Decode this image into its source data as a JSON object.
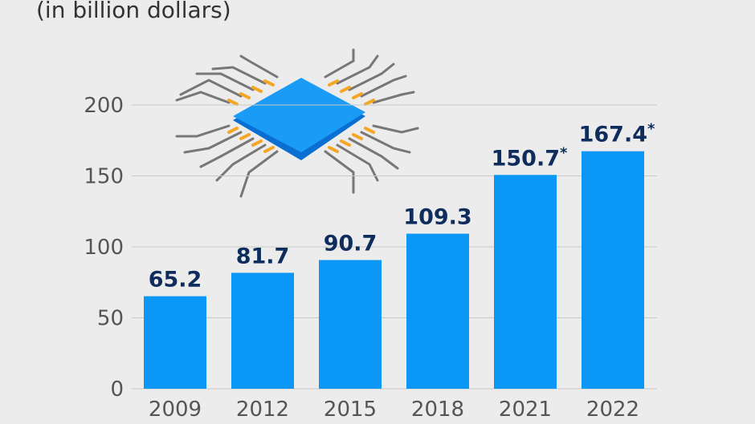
{
  "chart_data": {
    "type": "bar",
    "subtitle": "(in billion dollars)",
    "categories": [
      "2009",
      "2012",
      "2015",
      "2018",
      "2021",
      "2022"
    ],
    "values": [
      65.2,
      81.7,
      90.7,
      109.3,
      150.7,
      167.4
    ],
    "value_labels": [
      "65.2",
      "81.7",
      "90.7",
      "109.3",
      "150.7*",
      "167.4*"
    ],
    "color": "#0a97f5",
    "ylim": [
      0,
      200
    ],
    "yticks": [
      0,
      50,
      100,
      150,
      200
    ],
    "grid": true
  }
}
